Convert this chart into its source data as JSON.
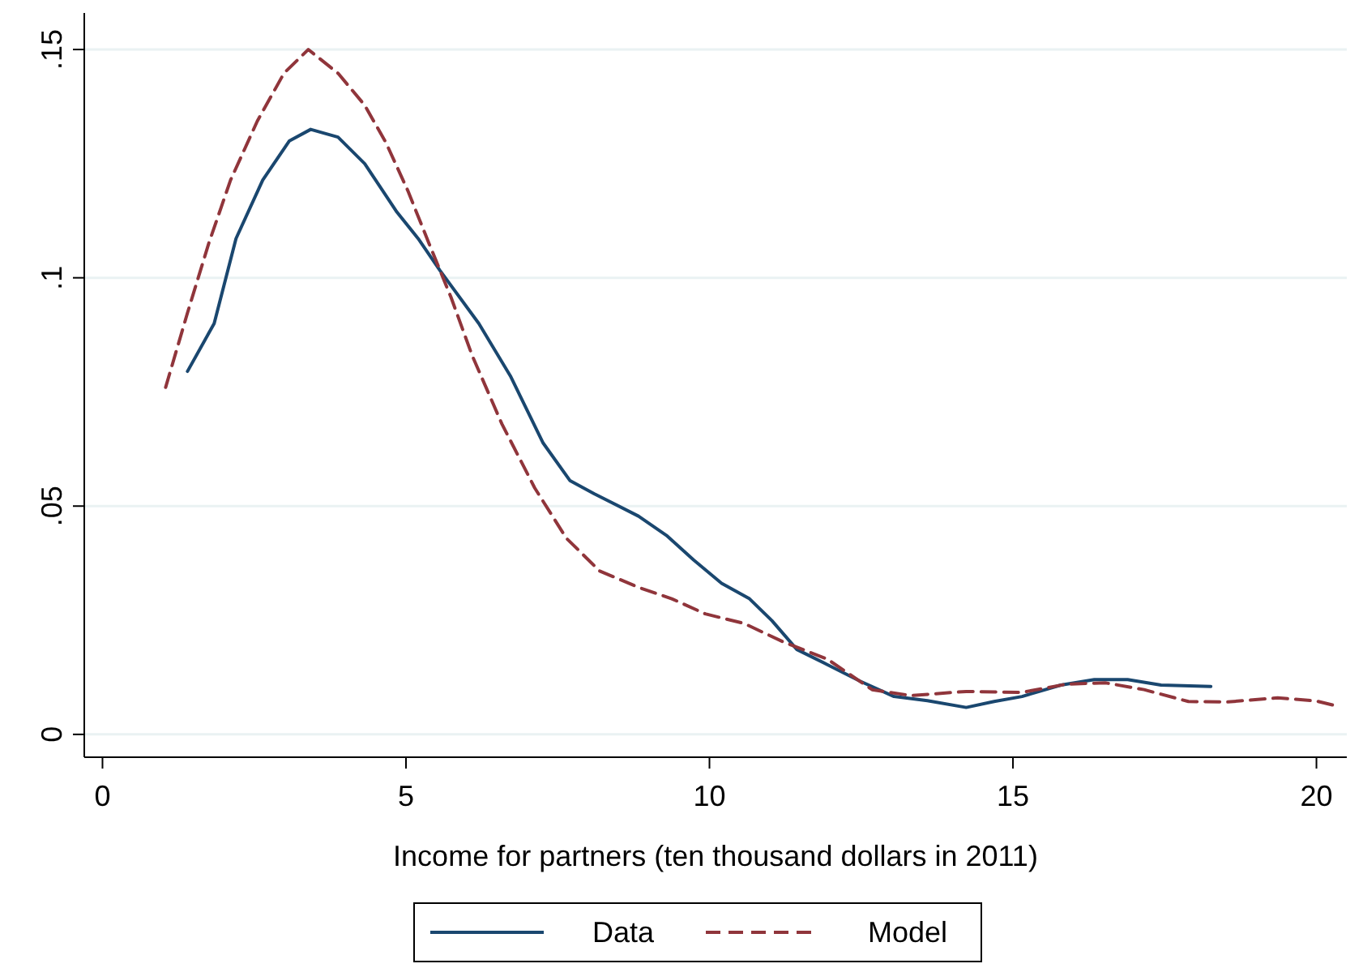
{
  "chart_data": {
    "type": "line",
    "xlabel": "Income for partners (ten thousand dollars in 2011)",
    "xlim": [
      -0.3,
      20.5
    ],
    "xticks": [
      0,
      5,
      10,
      15,
      20
    ],
    "ylim": [
      -0.005,
      0.158
    ],
    "yticks": [
      {
        "value": 0,
        "label": "0"
      },
      {
        "value": 0.05,
        "label": ".05"
      },
      {
        "value": 0.1,
        "label": ".1"
      },
      {
        "value": 0.15,
        "label": ".15"
      }
    ],
    "grid": "y",
    "legend": "bottom",
    "series": [
      {
        "name": "Data",
        "color": "#1a476f",
        "line_style": "solid",
        "x": [
          1.4,
          1.84,
          2.2,
          2.64,
          3.08,
          3.43,
          3.88,
          4.32,
          4.85,
          5.2,
          5.56,
          6.2,
          6.72,
          7.26,
          7.7,
          8.1,
          8.83,
          9.29,
          9.74,
          10.2,
          10.66,
          11.03,
          11.44,
          11.94,
          12.49,
          13.04,
          13.59,
          14.23,
          14.69,
          15.15,
          15.79,
          16.34,
          16.89,
          17.44,
          18.26
        ],
        "values": [
          0.0795,
          0.09,
          0.1086,
          0.1214,
          0.13,
          0.1325,
          0.1308,
          0.125,
          0.1144,
          0.1086,
          0.1016,
          0.09,
          0.0785,
          0.0638,
          0.0556,
          0.0527,
          0.0478,
          0.0436,
          0.0382,
          0.0331,
          0.0297,
          0.0249,
          0.0186,
          0.0153,
          0.0116,
          0.0083,
          0.0074,
          0.0059,
          0.0072,
          0.0083,
          0.0108,
          0.012,
          0.012,
          0.0108,
          0.0105
        ]
      },
      {
        "name": "Model",
        "color": "#90353b",
        "line_style": "dashed",
        "x": [
          1.04,
          1.4,
          1.75,
          2.11,
          2.55,
          2.99,
          3.39,
          3.88,
          4.32,
          4.67,
          5.03,
          5.38,
          5.74,
          6.09,
          6.58,
          7.12,
          7.64,
          8.19,
          8.83,
          9.38,
          9.93,
          10.57,
          11.21,
          11.94,
          12.68,
          13.32,
          14.23,
          15.15,
          15.88,
          16.52,
          17.16,
          17.89,
          18.53,
          19.36,
          20.0,
          20.37
        ],
        "values": [
          0.076,
          0.0923,
          0.1075,
          0.1214,
          0.1343,
          0.1448,
          0.15,
          0.1448,
          0.1378,
          0.1296,
          0.1191,
          0.1075,
          0.0958,
          0.083,
          0.068,
          0.054,
          0.043,
          0.0358,
          0.0322,
          0.0297,
          0.0264,
          0.0243,
          0.0203,
          0.0165,
          0.0098,
          0.0085,
          0.0094,
          0.0092,
          0.011,
          0.0113,
          0.0098,
          0.0072,
          0.0071,
          0.008,
          0.0073,
          0.0061
        ]
      }
    ]
  }
}
